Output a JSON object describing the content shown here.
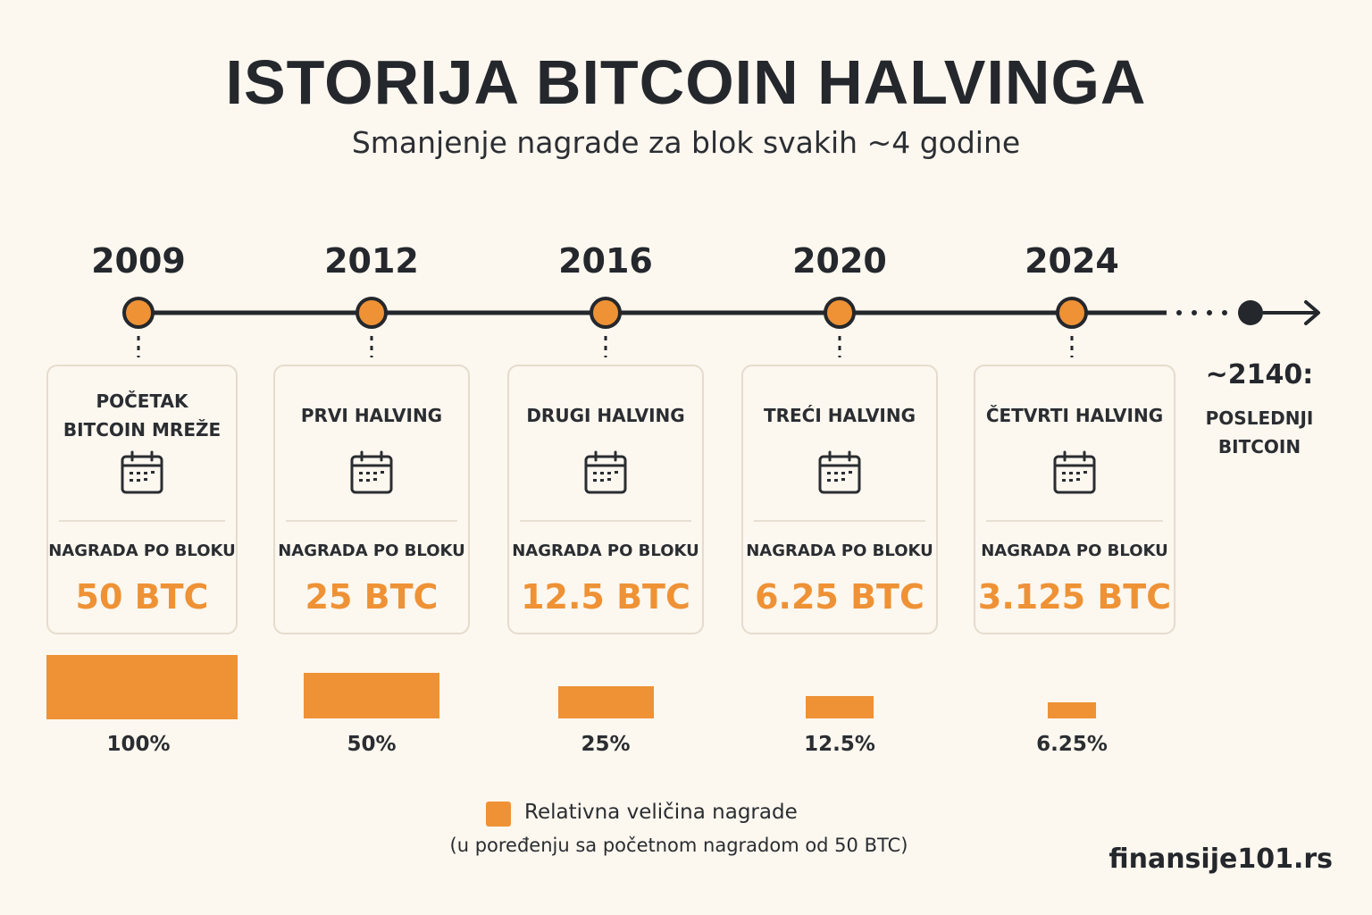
{
  "title": "ISTORIJA BITCOIN HALVINGA",
  "subtitle": "Smanjenje nagrade za blok svakih ~4 godine",
  "colors": {
    "accent": "#ee9235",
    "text": "#24272c",
    "background": "#fcf7ef",
    "card_border": "#e4dccd"
  },
  "events": [
    {
      "year": "2009",
      "title": "POČETAK\nBITCOIN MREŽE",
      "reward_label": "NAGRADA PO BLOKU",
      "reward": "50 BTC",
      "relative_pct": 100,
      "pct_label": "100%",
      "icon": "calendar-icon"
    },
    {
      "year": "2012",
      "title": "PRVI HALVING",
      "reward_label": "NAGRADA PO BLOKU",
      "reward": "25 BTC",
      "relative_pct": 50,
      "pct_label": "50%",
      "icon": "calendar-icon"
    },
    {
      "year": "2016",
      "title": "DRUGI HALVING",
      "reward_label": "NAGRADA PO BLOKU",
      "reward": "12.5 BTC",
      "relative_pct": 25,
      "pct_label": "25%",
      "icon": "calendar-icon"
    },
    {
      "year": "2020",
      "title": "TREĆI HALVING",
      "reward_label": "NAGRADA PO BLOKU",
      "reward": "6.25 BTC",
      "relative_pct": 12.5,
      "pct_label": "12.5%",
      "icon": "calendar-icon"
    },
    {
      "year": "2024",
      "title": "ČETVRTI HALVING",
      "reward_label": "NAGRADA PO BLOKU",
      "reward": "3.125 BTC",
      "relative_pct": 6.25,
      "pct_label": "6.25%",
      "icon": "calendar-icon"
    }
  ],
  "end_marker": {
    "year": "~2140:",
    "text": "POSLEDNJI\nBITCOIN"
  },
  "legend": {
    "label": "Relativna veličina nagrade",
    "note": "(u poređenju sa početnom nagradom od 50 BTC)"
  },
  "brand": "finansije101.rs"
}
